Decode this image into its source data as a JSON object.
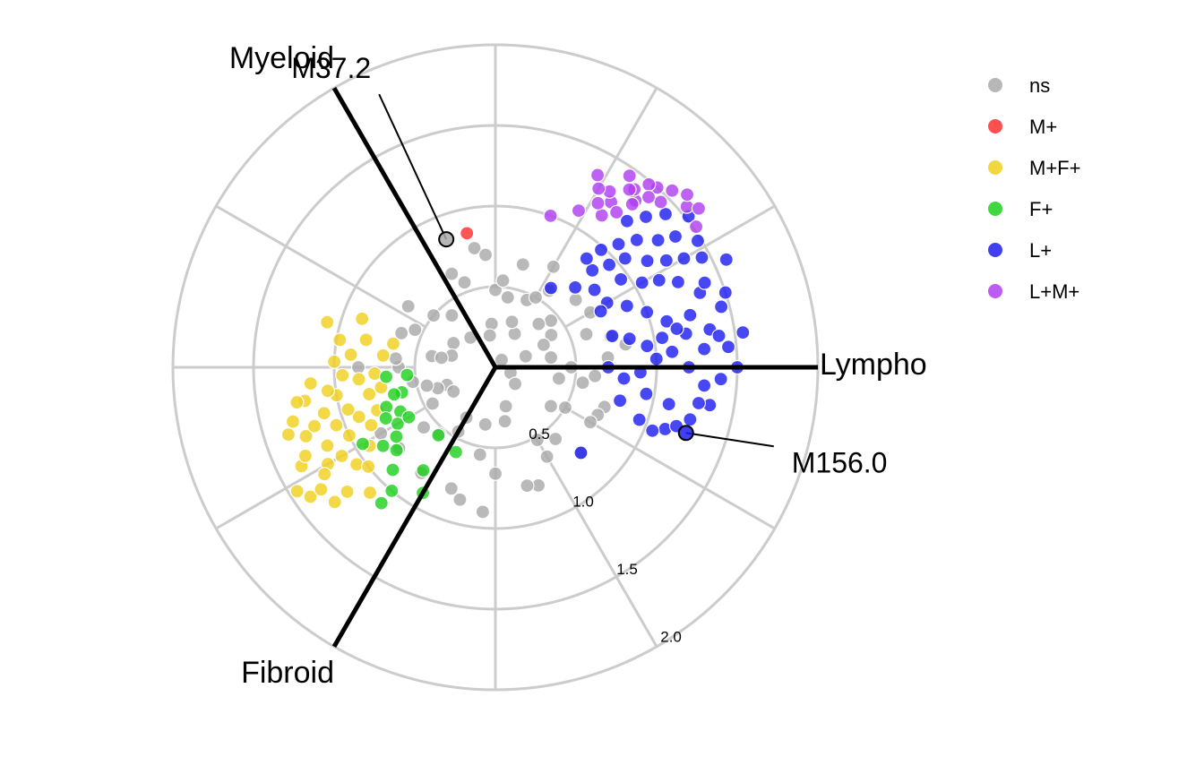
{
  "chart_data": {
    "type": "scatter",
    "coordinate_system": "polar (radial plot)",
    "radial_ticks": [
      0.5,
      1.0,
      1.5,
      2.0
    ],
    "radial_range": [
      0,
      2
    ],
    "grid": true,
    "legend_position": "top-right",
    "axes": [
      {
        "name": "Myeloid",
        "angle_deg": 120
      },
      {
        "name": "Lympho",
        "angle_deg": 0
      },
      {
        "name": "Fibroid",
        "angle_deg": 240
      }
    ],
    "labelled_points": [
      {
        "label": "M37.2",
        "group": "ns",
        "r": 0.85,
        "theta": 111
      },
      {
        "label": "M156.0",
        "group": "L+",
        "r": 1.25,
        "theta": -19
      }
    ],
    "legend": [
      {
        "label": "ns",
        "color": "#aaaaaa"
      },
      {
        "label": "M+",
        "color": "#ff3030"
      },
      {
        "label": "M+F+",
        "color": "#f0d020"
      },
      {
        "label": "F+",
        "color": "#20d020"
      },
      {
        "label": "L+",
        "color": "#1e1ef0"
      },
      {
        "label": "L+M+",
        "color": "#b040f0"
      }
    ],
    "series": [
      {
        "name": "ns",
        "points": [
          [
            0.06,
            50
          ],
          [
            0.1,
            -20
          ],
          [
            0.16,
            -40
          ],
          [
            0.2,
            20
          ],
          [
            0.24,
            60
          ],
          [
            0.27,
            95
          ],
          [
            0.3,
            150
          ],
          [
            0.32,
            200
          ],
          [
            0.34,
            -80
          ],
          [
            0.36,
            -120
          ],
          [
            0.38,
            -160
          ],
          [
            0.4,
            170
          ],
          [
            0.42,
            130
          ],
          [
            0.44,
            80
          ],
          [
            0.45,
            40
          ],
          [
            0.47,
            0
          ],
          [
            0.5,
            -30
          ],
          [
            0.52,
            -60
          ],
          [
            0.55,
            -100
          ],
          [
            0.58,
            -140
          ],
          [
            0.6,
            180
          ],
          [
            0.62,
            160
          ],
          [
            0.64,
            115
          ],
          [
            0.66,
            75
          ],
          [
            0.68,
            30
          ],
          [
            0.7,
            5
          ],
          [
            0.72,
            -20
          ],
          [
            0.75,
            -45
          ],
          [
            0.78,
            -70
          ],
          [
            0.8,
            -110
          ],
          [
            0.82,
            -150
          ],
          [
            0.2,
            100
          ],
          [
            0.24,
            130
          ],
          [
            0.28,
            165
          ],
          [
            0.3,
            -150
          ],
          [
            0.35,
            10
          ],
          [
            0.38,
            45
          ],
          [
            0.4,
            -10
          ],
          [
            0.42,
            -35
          ],
          [
            0.46,
            65
          ],
          [
            0.48,
            90
          ],
          [
            0.5,
            140
          ],
          [
            0.52,
            -170
          ],
          [
            0.54,
            -130
          ],
          [
            0.56,
            110
          ],
          [
            0.58,
            55
          ],
          [
            0.6,
            20
          ],
          [
            0.62,
            -5
          ],
          [
            0.64,
            -60
          ],
          [
            0.66,
            -90
          ],
          [
            0.3,
            70
          ],
          [
            0.34,
            170
          ],
          [
            0.36,
            -100
          ],
          [
            0.4,
            30
          ],
          [
            0.44,
            -165
          ],
          [
            0.46,
            -120
          ],
          [
            0.5,
            60
          ],
          [
            0.54,
            85
          ],
          [
            0.58,
            -50
          ],
          [
            0.62,
            175
          ],
          [
            0.66,
            145
          ],
          [
            0.7,
            -25
          ],
          [
            0.74,
            15
          ],
          [
            0.76,
            -75
          ],
          [
            0.8,
            -125
          ],
          [
            0.85,
            -105
          ],
          [
            0.9,
            -95
          ],
          [
            0.55,
            -10
          ],
          [
            0.65,
            40
          ],
          [
            0.72,
            60
          ],
          [
            0.75,
            100
          ],
          [
            0.78,
            -140
          ],
          [
            0.85,
            180
          ],
          [
            0.25,
            -75
          ],
          [
            0.33,
            25
          ],
          [
            0.45,
            -150
          ],
          [
            0.55,
            155
          ],
          [
            0.68,
            -30
          ],
          [
            0.7,
            95
          ],
          [
            0.82,
            10
          ]
        ]
      },
      {
        "name": "M+",
        "points": [
          [
            0.85,
            102
          ]
        ]
      },
      {
        "name": "M+F+",
        "points": [
          [
            1.0,
            190
          ],
          [
            1.05,
            200
          ],
          [
            1.1,
            195
          ],
          [
            1.15,
            205
          ],
          [
            1.2,
            210
          ],
          [
            1.25,
            200
          ],
          [
            1.3,
            195
          ],
          [
            1.0,
            178
          ],
          [
            0.9,
            175
          ],
          [
            0.95,
            183
          ],
          [
            1.05,
            215
          ],
          [
            1.15,
            185
          ],
          [
            1.2,
            190
          ],
          [
            1.25,
            212
          ],
          [
            1.3,
            220
          ],
          [
            1.35,
            207
          ],
          [
            0.85,
            185
          ],
          [
            0.75,
            183
          ],
          [
            0.7,
            174
          ],
          [
            0.8,
            192
          ],
          [
            0.9,
            200
          ],
          [
            1.0,
            205
          ],
          [
            1.1,
            210
          ],
          [
            1.2,
            220
          ],
          [
            1.05,
            188
          ],
          [
            0.95,
            196
          ],
          [
            0.85,
            205
          ],
          [
            1.3,
            205
          ],
          [
            1.4,
            215
          ],
          [
            1.1,
            225
          ],
          [
            1.0,
            218
          ],
          [
            0.92,
            212
          ],
          [
            1.18,
            198
          ],
          [
            0.98,
            170
          ],
          [
            0.82,
            168
          ],
          [
            0.88,
            160
          ],
          [
            1.08,
            165
          ],
          [
            1.25,
            190
          ],
          [
            1.35,
            198
          ],
          [
            0.78,
            200
          ],
          [
            1.45,
            212
          ],
          [
            1.32,
            215
          ],
          [
            0.65,
            167
          ],
          [
            0.72,
            190
          ]
        ]
      },
      {
        "name": "F+",
        "points": [
          [
            0.55,
            185
          ],
          [
            0.6,
            195
          ],
          [
            0.65,
            205
          ],
          [
            0.7,
            210
          ],
          [
            0.75,
            215
          ],
          [
            0.8,
            220
          ],
          [
            0.9,
            225
          ],
          [
            1.0,
            230
          ],
          [
            1.1,
            230
          ],
          [
            0.65,
            195
          ],
          [
            0.72,
            200
          ],
          [
            0.85,
            215
          ],
          [
            0.95,
            210
          ],
          [
            0.62,
            210
          ],
          [
            0.55,
            230
          ],
          [
            0.9,
            240
          ],
          [
            0.78,
            235
          ],
          [
            0.68,
            185
          ],
          [
            0.75,
            205
          ],
          [
            0.58,
            245
          ]
        ]
      },
      {
        "name": "L+",
        "points": [
          [
            0.8,
            30
          ],
          [
            0.9,
            25
          ],
          [
            1.0,
            20
          ],
          [
            1.1,
            15
          ],
          [
            1.2,
            10
          ],
          [
            1.3,
            5
          ],
          [
            0.95,
            35
          ],
          [
            1.05,
            30
          ],
          [
            1.15,
            28
          ],
          [
            1.25,
            25
          ],
          [
            1.35,
            20
          ],
          [
            1.45,
            15
          ],
          [
            0.85,
            45
          ],
          [
            0.95,
            42
          ],
          [
            1.05,
            40
          ],
          [
            1.15,
            35
          ],
          [
            1.25,
            32
          ],
          [
            1.35,
            30
          ],
          [
            1.45,
            28
          ],
          [
            0.7,
            0
          ],
          [
            0.8,
            -5
          ],
          [
            0.9,
            -2
          ],
          [
            1.0,
            3
          ],
          [
            1.1,
            5
          ],
          [
            1.2,
            0
          ],
          [
            1.3,
            -5
          ],
          [
            1.4,
            -3
          ],
          [
            1.5,
            0
          ],
          [
            0.75,
            15
          ],
          [
            0.85,
            12
          ],
          [
            0.95,
            8
          ],
          [
            1.05,
            10
          ],
          [
            1.15,
            12
          ],
          [
            1.25,
            15
          ],
          [
            1.35,
            10
          ],
          [
            1.45,
            5
          ],
          [
            1.55,
            8
          ],
          [
            0.8,
            -15
          ],
          [
            0.95,
            -10
          ],
          [
            1.1,
            -12
          ],
          [
            1.25,
            -15
          ],
          [
            1.35,
            -10
          ],
          [
            0.7,
            45
          ],
          [
            0.78,
            38
          ],
          [
            0.88,
            50
          ],
          [
            0.98,
            48
          ],
          [
            1.08,
            45
          ],
          [
            1.18,
            42
          ],
          [
            1.28,
            38
          ],
          [
            1.38,
            36
          ],
          [
            1.48,
            32
          ],
          [
            1.58,
            25
          ],
          [
            1.22,
            48
          ],
          [
            1.32,
            45
          ],
          [
            1.42,
            42
          ],
          [
            1.52,
            38
          ],
          [
            0.75,
            -45
          ],
          [
            0.95,
            -20
          ],
          [
            0.6,
            55
          ],
          [
            1.12,
            -20
          ],
          [
            1.18,
            -18
          ],
          [
            1.4,
            22
          ],
          [
            1.5,
            18
          ],
          [
            0.74,
            28
          ],
          [
            1.05,
            -22
          ],
          [
            1.28,
            -10
          ],
          [
            1.4,
            8
          ]
        ]
      },
      {
        "name": "L+M+",
        "points": [
          [
            1.15,
            55
          ],
          [
            1.25,
            55
          ],
          [
            1.35,
            50
          ],
          [
            1.45,
            45
          ],
          [
            1.55,
            40
          ],
          [
            1.2,
            58
          ],
          [
            1.3,
            57
          ],
          [
            1.4,
            52
          ],
          [
            1.5,
            48
          ],
          [
            1.6,
            42
          ],
          [
            1.28,
            60
          ],
          [
            1.38,
            53
          ],
          [
            1.48,
            50
          ],
          [
            1.55,
            45
          ],
          [
            1.42,
            48
          ],
          [
            1.32,
            50
          ],
          [
            1.22,
            52
          ],
          [
            1.1,
            62
          ],
          [
            1.6,
            38
          ],
          [
            1.52,
            35
          ],
          [
            1.0,
            70
          ],
          [
            1.35,
            62
          ],
          [
            1.45,
            55
          ]
        ]
      }
    ]
  }
}
